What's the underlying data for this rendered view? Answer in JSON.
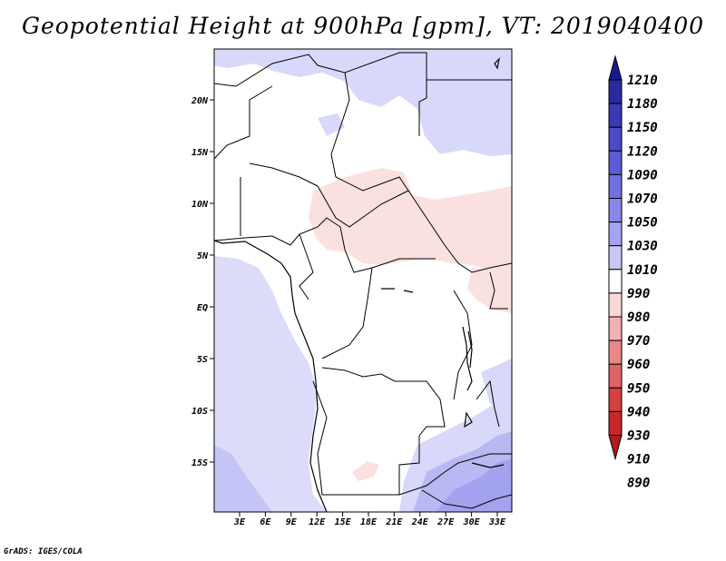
{
  "title": "Geopotential Height at 900hPa [gpm], VT: 2019040400",
  "credit": "GrADS: IGES/COLA",
  "map": {
    "lat_labels": [
      "20N",
      "15N",
      "10N",
      "5N",
      "EQ",
      "5S",
      "10S",
      "15S"
    ],
    "lon_labels": [
      "3E",
      "6E",
      "9E",
      "12E",
      "15E",
      "18E",
      "21E",
      "24E",
      "27E",
      "30E",
      "33E"
    ]
  },
  "colorbar": {
    "labels": [
      "1210",
      "1180",
      "1150",
      "1120",
      "1090",
      "1070",
      "1050",
      "1030",
      "1010",
      "990",
      "980",
      "970",
      "960",
      "950",
      "940",
      "930",
      "910",
      "890"
    ],
    "colors": [
      "#1a1a8c",
      "#2a2aa0",
      "#3a3ab4",
      "#4b4bc8",
      "#5c5cd8",
      "#7070e0",
      "#8888ea",
      "#a4a4f0",
      "#c8c8f8",
      "#ffffff",
      "#fad7d7",
      "#f2b0b0",
      "#e88888",
      "#de6464",
      "#d54040",
      "#c82828",
      "#b01a1a"
    ]
  }
}
